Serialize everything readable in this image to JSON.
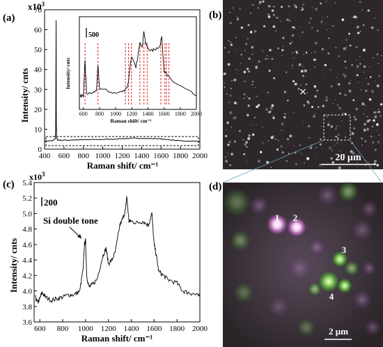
{
  "figure": {
    "panel_labels": {
      "a": "(a)",
      "b": "(b)",
      "c": "(c)",
      "d": "(d)"
    },
    "panel_a_exponent": "x10",
    "panel_a_exponent_power": "3",
    "panel_c_exponent": "x10",
    "panel_c_exponent_power": "3",
    "scalebar_b": "20 µm",
    "scalebar_d": "2 µm",
    "center_mark": "×",
    "spot_labels": [
      "1",
      "2",
      "3",
      "4"
    ],
    "annotation_c": "Si double tone",
    "scale_mark_a_inset": "500",
    "scale_mark_c": "200"
  },
  "chart_data": [
    {
      "type": "line",
      "panel": "a",
      "xlabel": "Raman shift/ cm⁻¹",
      "ylabel": "Intensity/ cnts",
      "xlim": [
        400,
        2000
      ],
      "ylim": [
        0,
        70
      ],
      "x_ticks": [
        "400",
        "600",
        "800",
        "1000",
        "1200",
        "1400",
        "1600",
        "1800",
        "2000"
      ],
      "y_ticks": [
        "0",
        "10",
        "20",
        "30",
        "40",
        "50",
        "60",
        "70"
      ],
      "series": [
        {
          "x": [
            400,
            480,
            510,
            515,
            519,
            521,
            525,
            535,
            560,
            620,
            700,
            800,
            900,
            1000,
            1100,
            1200,
            1300,
            1360,
            1450,
            1580,
            1650,
            1800,
            1900,
            2000
          ],
          "y": [
            4.1,
            4.2,
            5,
            10,
            64.5,
            12,
            5.5,
            4.6,
            4.5,
            4.5,
            4.6,
            4.7,
            4.8,
            4.9,
            5.0,
            5.3,
            5.4,
            5.5,
            5.3,
            5.3,
            4.8,
            4.2,
            4.0,
            3.9
          ]
        }
      ]
    },
    {
      "type": "line",
      "panel": "a-inset",
      "xlabel": "Raman shift/ cm⁻¹",
      "ylabel": "Intensity/ cnts",
      "xlim": [
        550,
        2000
      ],
      "x_ticks": [
        "600",
        "800",
        "1000",
        "1200",
        "1400",
        "1600",
        "1800",
        "2000"
      ],
      "peak_markers": [
        620,
        780,
        1120,
        1160,
        1195,
        1300,
        1350,
        1390,
        1560,
        1610,
        1630,
        1660
      ],
      "series": [
        {
          "x": [
            560,
            600,
            620,
            640,
            700,
            760,
            780,
            800,
            900,
            1000,
            1100,
            1150,
            1195,
            1250,
            1300,
            1330,
            1350,
            1370,
            1400,
            1450,
            1500,
            1550,
            1570,
            1600,
            1640,
            1700,
            1800,
            1900,
            2000
          ],
          "y": [
            3.9,
            3.9,
            4.6,
            3.95,
            3.95,
            4.0,
            4.5,
            4.05,
            4.0,
            3.95,
            4.0,
            4.1,
            4.7,
            4.45,
            4.95,
            4.9,
            5.2,
            4.95,
            4.85,
            4.8,
            4.85,
            4.9,
            5.1,
            4.4,
            4.3,
            4.2,
            4.1,
            4.0,
            3.9
          ]
        }
      ]
    },
    {
      "type": "line",
      "panel": "c",
      "xlabel": "Raman shift/ cm⁻¹",
      "ylabel": "Intensity/ cnts",
      "xlim": [
        550,
        2000
      ],
      "ylim": [
        3.6,
        5.4
      ],
      "x_ticks": [
        "600",
        "800",
        "1000",
        "1200",
        "1400",
        "1600",
        "1800",
        "2000"
      ],
      "y_ticks": [
        "3.6",
        "3.8",
        "4.0",
        "4.2",
        "4.4",
        "4.6",
        "4.8",
        "5.0",
        "5.2",
        "5.4"
      ],
      "series": [
        {
          "x": [
            560,
            580,
            600,
            620,
            650,
            700,
            750,
            800,
            850,
            900,
            950,
            980,
            990,
            1000,
            1010,
            1030,
            1060,
            1100,
            1150,
            1180,
            1200,
            1230,
            1260,
            1300,
            1330,
            1350,
            1360,
            1380,
            1400,
            1450,
            1500,
            1550,
            1580,
            1600,
            1620,
            1640,
            1680,
            1720,
            1800,
            1850,
            1900,
            1950,
            2000
          ],
          "y": [
            3.92,
            3.85,
            3.9,
            3.98,
            3.92,
            3.88,
            3.9,
            3.92,
            3.95,
            3.95,
            4.0,
            4.3,
            4.6,
            4.65,
            4.2,
            4.05,
            4.08,
            4.15,
            4.45,
            4.55,
            4.35,
            4.4,
            4.5,
            4.85,
            4.95,
            5.05,
            5.22,
            4.9,
            4.9,
            4.88,
            4.9,
            4.85,
            5.0,
            4.6,
            4.45,
            4.25,
            4.2,
            4.15,
            4.1,
            4.0,
            3.98,
            3.96,
            3.93
          ]
        }
      ]
    }
  ]
}
